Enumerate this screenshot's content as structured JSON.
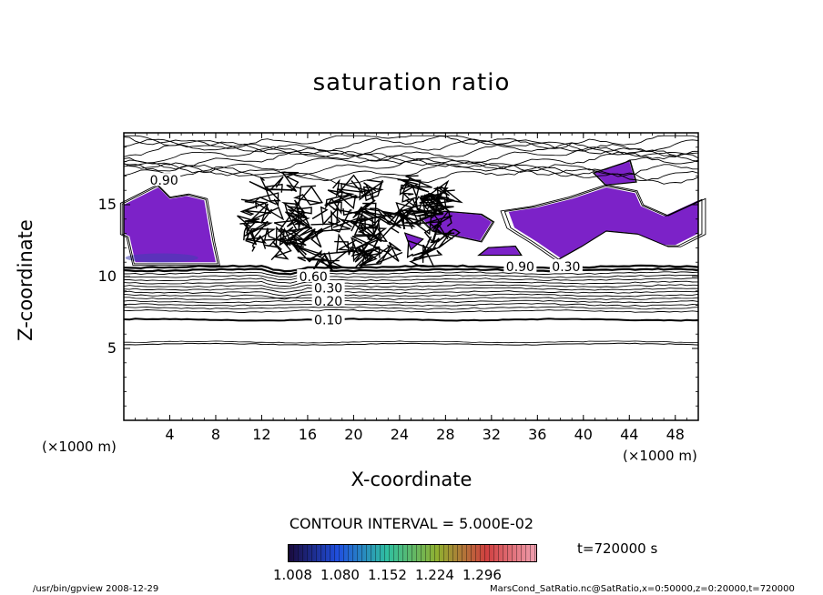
{
  "chart_data": {
    "type": "contour",
    "title": "saturation ratio",
    "xlabel": "X-coordinate",
    "ylabel": "Z-coordinate",
    "x_unit": "(×1000 m)",
    "y_unit": "(×1000 m)",
    "xlim": [
      0,
      50
    ],
    "ylim": [
      0,
      20
    ],
    "x_ticks": [
      "4",
      "8",
      "12",
      "16",
      "20",
      "24",
      "28",
      "32",
      "36",
      "40",
      "44",
      "48"
    ],
    "y_ticks": [
      "5",
      "10",
      "15"
    ],
    "contour_labels": [
      {
        "text": "0.10",
        "x": 17.8,
        "z": 7.0
      },
      {
        "text": "0.20",
        "x": 17.8,
        "z": 8.3
      },
      {
        "text": "0.30",
        "x": 17.8,
        "z": 9.2
      },
      {
        "text": "0.60",
        "x": 16.5,
        "z": 10.0
      },
      {
        "text": "0.90",
        "x": 3.5,
        "z": 16.7
      },
      {
        "text": "0.90",
        "x": 34.5,
        "z": 10.7
      },
      {
        "text": "0.30",
        "x": 38.5,
        "z": 10.7
      }
    ],
    "contour_interval_text": "CONTOUR INTERVAL = 5.000E-02",
    "colorbar": {
      "labels": [
        "1.008",
        "1.080",
        "1.152",
        "1.224",
        "1.296"
      ],
      "colors": [
        "#1a0a3c",
        "#2050e0",
        "#30c0a0",
        "#90b030",
        "#d04040",
        "#f0a0b0"
      ]
    },
    "time_label": "t=720000 s",
    "supersaturated_fill": "#7c22c8"
  },
  "footer": {
    "left": "/usr/bin/gpview   2008-12-29",
    "right": "MarsCond_SatRatio.nc@SatRatio,x=0:50000,z=0:20000,t=720000"
  }
}
